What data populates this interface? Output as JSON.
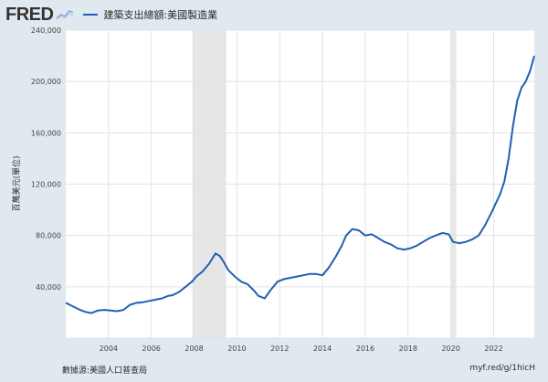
{
  "header": {
    "logo": "FRED",
    "logo_graph_icon": "trend-graph-icon",
    "legend_label": "建築支出總額:美國製造業"
  },
  "footer": {
    "source": "數據源:美國人口普查局",
    "url": "myf.red/g/1hicH"
  },
  "chart_data": {
    "type": "line",
    "title": "",
    "xlabel": "",
    "ylabel": "百萬美元(單位)",
    "xlim": [
      2002.0,
      2023.9
    ],
    "ylim": [
      0,
      240000
    ],
    "y_ticks": [
      0,
      40000,
      80000,
      120000,
      160000,
      200000,
      240000
    ],
    "y_tick_labels": [
      "",
      "40,000",
      "80,000",
      "120,000",
      "160,000",
      "200,000",
      "240,000"
    ],
    "x_ticks": [
      2004,
      2006,
      2008,
      2010,
      2012,
      2014,
      2016,
      2018,
      2020,
      2022
    ],
    "x_tick_labels": [
      "2004",
      "2006",
      "2008",
      "2010",
      "2012",
      "2014",
      "2016",
      "2018",
      "2020",
      "2022"
    ],
    "grid": true,
    "recessions": [
      [
        2007.92,
        2009.5
      ],
      [
        2020.0,
        2020.25
      ]
    ],
    "colors": {
      "line": "#1f5fb5",
      "recession": "#e6e6e6",
      "grid": "#e3e3e3"
    },
    "series": [
      {
        "name": "建築支出總額:美國製造業",
        "x": [
          2002.0,
          2002.3,
          2002.6,
          2002.9,
          2003.2,
          2003.5,
          2003.8,
          2004.1,
          2004.4,
          2004.7,
          2005.0,
          2005.3,
          2005.6,
          2005.9,
          2006.2,
          2006.5,
          2006.8,
          2007.0,
          2007.3,
          2007.6,
          2007.9,
          2008.1,
          2008.4,
          2008.7,
          2009.0,
          2009.2,
          2009.4,
          2009.6,
          2009.9,
          2010.2,
          2010.5,
          2010.8,
          2011.0,
          2011.3,
          2011.6,
          2011.9,
          2012.2,
          2012.5,
          2012.8,
          2013.1,
          2013.4,
          2013.7,
          2014.0,
          2014.3,
          2014.6,
          2014.9,
          2015.1,
          2015.4,
          2015.7,
          2016.0,
          2016.3,
          2016.6,
          2016.9,
          2017.2,
          2017.5,
          2017.8,
          2018.1,
          2018.4,
          2018.7,
          2019.0,
          2019.3,
          2019.6,
          2019.9,
          2020.1,
          2020.4,
          2020.7,
          2021.0,
          2021.3,
          2021.6,
          2021.9,
          2022.1,
          2022.3,
          2022.5,
          2022.7,
          2022.9,
          2023.1,
          2023.3,
          2023.5,
          2023.7,
          2023.9
        ],
        "values": [
          27500,
          25000,
          22500,
          20500,
          19500,
          21500,
          22000,
          21500,
          21000,
          22000,
          26000,
          27500,
          28000,
          29000,
          30000,
          31000,
          33000,
          33500,
          36000,
          40000,
          44000,
          48000,
          52000,
          58000,
          66000,
          64000,
          59000,
          53000,
          48000,
          44000,
          42000,
          37000,
          33000,
          31000,
          38000,
          44000,
          46000,
          47000,
          48000,
          49000,
          50000,
          50000,
          49000,
          55000,
          63000,
          72000,
          80000,
          85000,
          84000,
          80000,
          81000,
          78000,
          75000,
          73000,
          70000,
          69000,
          70000,
          72000,
          75000,
          78000,
          80000,
          82000,
          81000,
          75000,
          74000,
          75000,
          77000,
          80000,
          88000,
          98000,
          105000,
          112000,
          122000,
          140000,
          165000,
          185000,
          195000,
          200000,
          208000,
          220000
        ]
      }
    ]
  }
}
